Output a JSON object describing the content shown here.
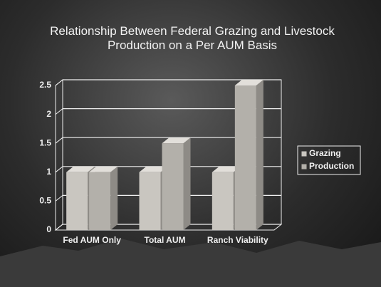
{
  "chart_data": {
    "type": "bar3d",
    "title": "Relationship Between Federal Grazing and Livestock Production on a Per AUM Basis",
    "categories": [
      "Fed AUM Only",
      "Total AUM",
      "Ranch Viability"
    ],
    "series": [
      {
        "name": "Grazing",
        "color": "#c9c6c0",
        "values": [
          1,
          1,
          1
        ]
      },
      {
        "name": "Production",
        "color": "#b3b0aa",
        "values": [
          1,
          1.5,
          2.5
        ]
      }
    ],
    "ylim": [
      0,
      2.5
    ],
    "yticks": [
      0,
      0.5,
      1,
      1.5,
      2,
      2.5
    ],
    "grid": true,
    "legend": "right"
  }
}
